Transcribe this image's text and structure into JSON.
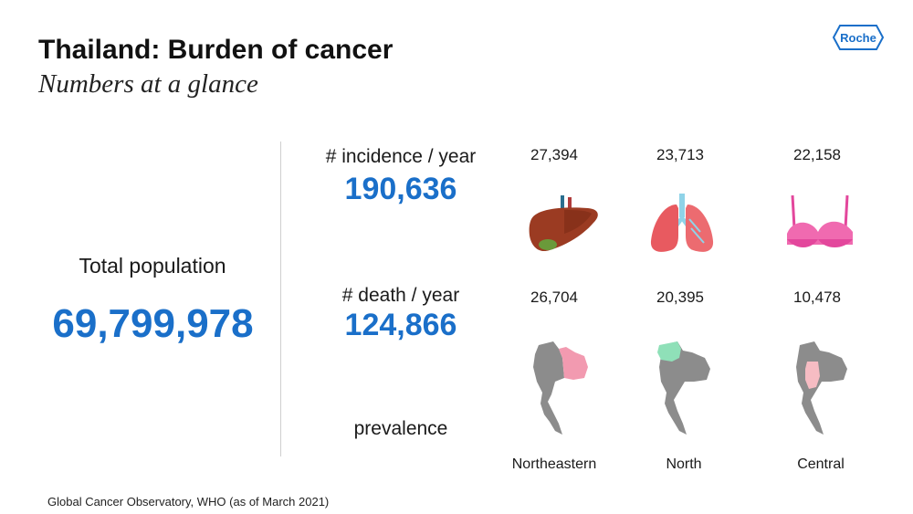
{
  "header": {
    "title": "Thailand: Burden of cancer",
    "subtitle": "Numbers at a glance",
    "logo_text": "Roche"
  },
  "population": {
    "label": "Total population",
    "value": "69,799,978"
  },
  "incidence": {
    "label": "# incidence / year",
    "value": "190,636",
    "by_cancer": [
      {
        "value": "27,394",
        "icon": "liver-icon"
      },
      {
        "value": "23,713",
        "icon": "lungs-icon"
      },
      {
        "value": "22,158",
        "icon": "breast-bra-icon"
      }
    ]
  },
  "death": {
    "label": "# death / year",
    "value": "124,866",
    "by_region": [
      {
        "value": "26,704",
        "region": "Northeastern",
        "icon": "thailand-map-northeastern-icon",
        "highlight": "#f29ab0"
      },
      {
        "value": "20,395",
        "region": "North",
        "icon": "thailand-map-north-icon",
        "highlight": "#8fe0b8"
      },
      {
        "value": "10,478",
        "region": "Central",
        "icon": "thailand-map-central-icon",
        "highlight": "#f6bcc3"
      }
    ]
  },
  "prevalence": {
    "label": "prevalence"
  },
  "footer": {
    "source": "Global Cancer Observatory, WHO (as of March 2021)"
  },
  "colors": {
    "accent_blue": "#1a6fc9",
    "map_gray": "#8c8c8c"
  }
}
